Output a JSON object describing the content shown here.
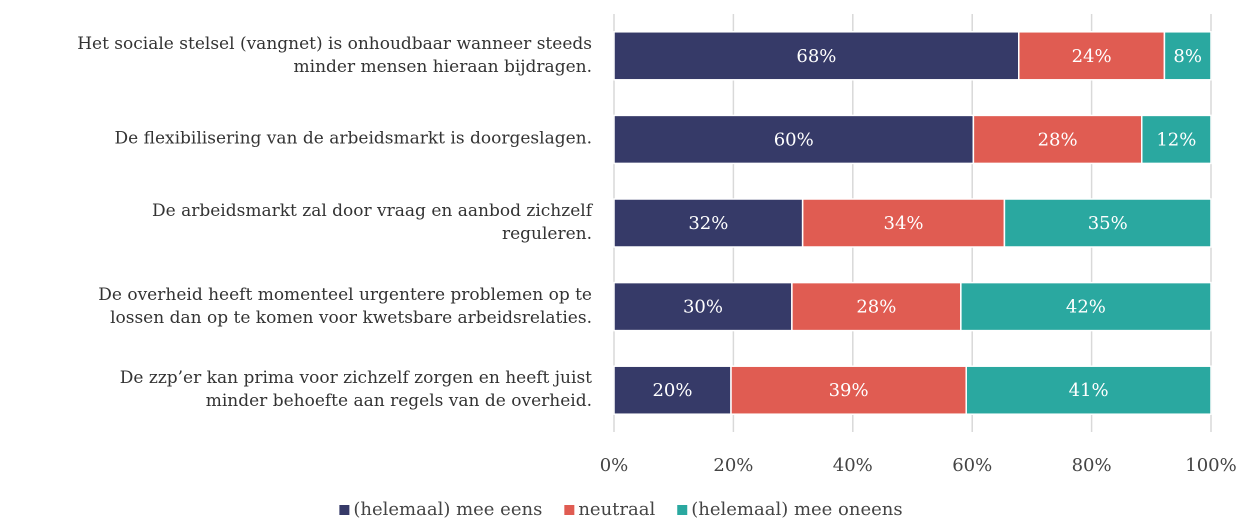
{
  "chart_data": {
    "type": "stacked_barh",
    "categories": [
      "Het sociale stelsel (vangnet) is onhoudbaar wanneer steeds\nminder mensen hieraan bijdragen.",
      "De flexibilisering van de arbeidsmarkt is doorgeslagen.",
      "De arbeidsmarkt zal door vraag en aanbod zichzelf\nreguleren.",
      "De overheid heeft momenteel urgentere problemen op te\nlossen dan op te komen voor kwetsbare arbeidsrelaties.",
      "De zzp’er kan prima voor zichzelf zorgen en heeft juist\nminder behoefte aan regels van de overheid."
    ],
    "series": [
      {
        "name": "(helemaal) mee eens",
        "color": "#363a68",
        "values": [
          67.8,
          60.2,
          31.6,
          29.8,
          19.6
        ],
        "value_labels": [
          "68%",
          "60%",
          "32%",
          "30%",
          "20%"
        ]
      },
      {
        "name": "neutraal",
        "color": "#e05c52",
        "values": [
          24.4,
          28.2,
          33.8,
          28.3,
          39.4
        ],
        "value_labels": [
          "24%",
          "28%",
          "34%",
          "28%",
          "39%"
        ]
      },
      {
        "name": "(helemaal) mee oneens",
        "color": "#2aa8a0",
        "values": [
          7.8,
          11.6,
          34.6,
          41.9,
          41.0
        ],
        "value_labels": [
          "8%",
          "12%",
          "35%",
          "42%",
          "41%"
        ]
      }
    ],
    "xlim": [
      0,
      100
    ],
    "xticks": [
      {
        "value": 0,
        "label": "0%"
      },
      {
        "value": 20,
        "label": "20%"
      },
      {
        "value": 40,
        "label": "40%"
      },
      {
        "value": 60,
        "label": "60%"
      },
      {
        "value": 80,
        "label": "80%"
      },
      {
        "value": 100,
        "label": "100%"
      }
    ],
    "grid": true,
    "legend": "bottom"
  }
}
